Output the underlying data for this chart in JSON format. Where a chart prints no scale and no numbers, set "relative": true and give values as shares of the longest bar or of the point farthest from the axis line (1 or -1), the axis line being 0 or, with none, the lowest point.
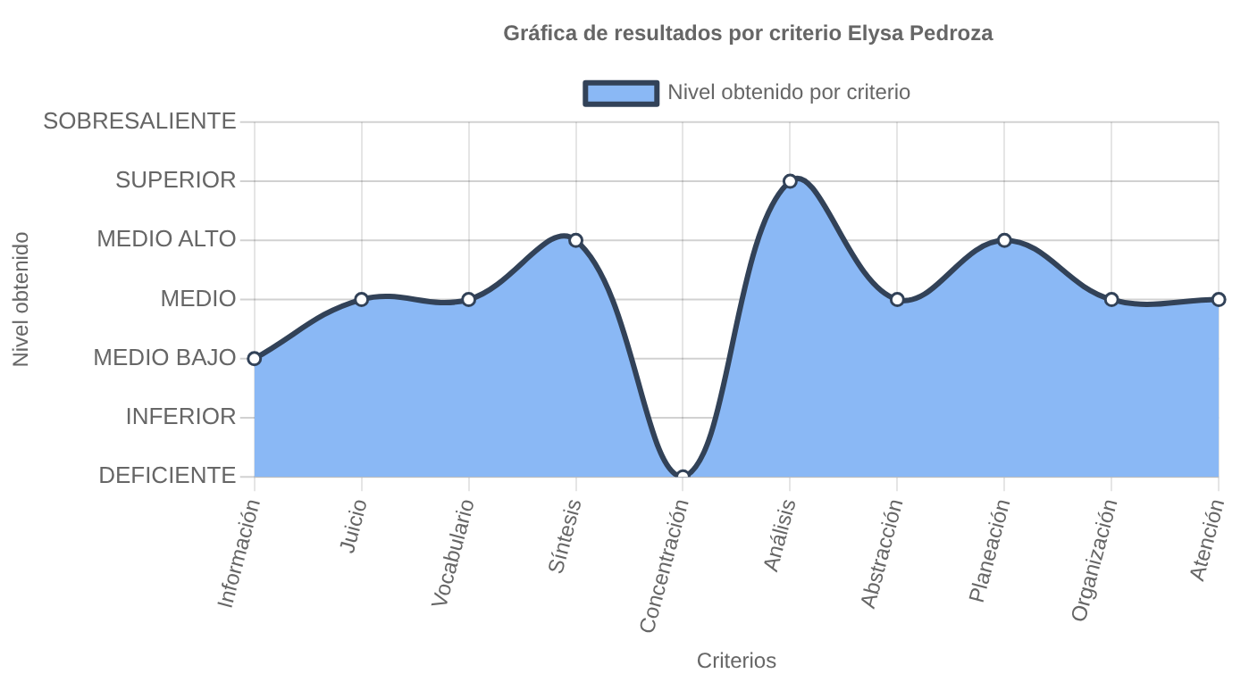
{
  "chart_data": {
    "type": "area",
    "title": "Gráfica de resultados por criterio Elysa Pedroza",
    "xlabel": "Criterios",
    "annotations": [
      "Nivel obtenido"
    ],
    "relative": true,
    "categories": [
      "Información",
      "Juicio",
      "Vocabulario",
      "Síntesis",
      "Concentración",
      "Análisis",
      "Abstracción",
      "Planeación",
      "Organización",
      "Atención"
    ],
    "series": [
      {
        "name": "Nivel obtenido por criterio",
        "color": "#8ab8f5",
        "values": [
          0.4,
          0.6,
          0.6,
          0.8,
          0,
          1,
          0.6,
          0.8,
          0.6,
          0.6
        ]
      }
    ],
    "ref_lines": [
      {
        "axis": "y",
        "value": 1.2,
        "label": "SOBRESALIENTE"
      },
      {
        "axis": "y",
        "value": 1,
        "label": "SUPERIOR"
      },
      {
        "axis": "y",
        "value": 0.8,
        "label": "MEDIO ALTO"
      },
      {
        "axis": "y",
        "value": 0.6,
        "label": "MEDIO"
      },
      {
        "axis": "y",
        "value": 0.4,
        "label": "MEDIO BAJO"
      },
      {
        "axis": "y",
        "value": 0.2,
        "label": "INFERIOR"
      },
      {
        "axis": "y",
        "value": 0,
        "label": "DEFICIENTE"
      }
    ],
    "grid": "x",
    "legend": "top",
    "marker": "circle",
    "line_style": "solid"
  }
}
